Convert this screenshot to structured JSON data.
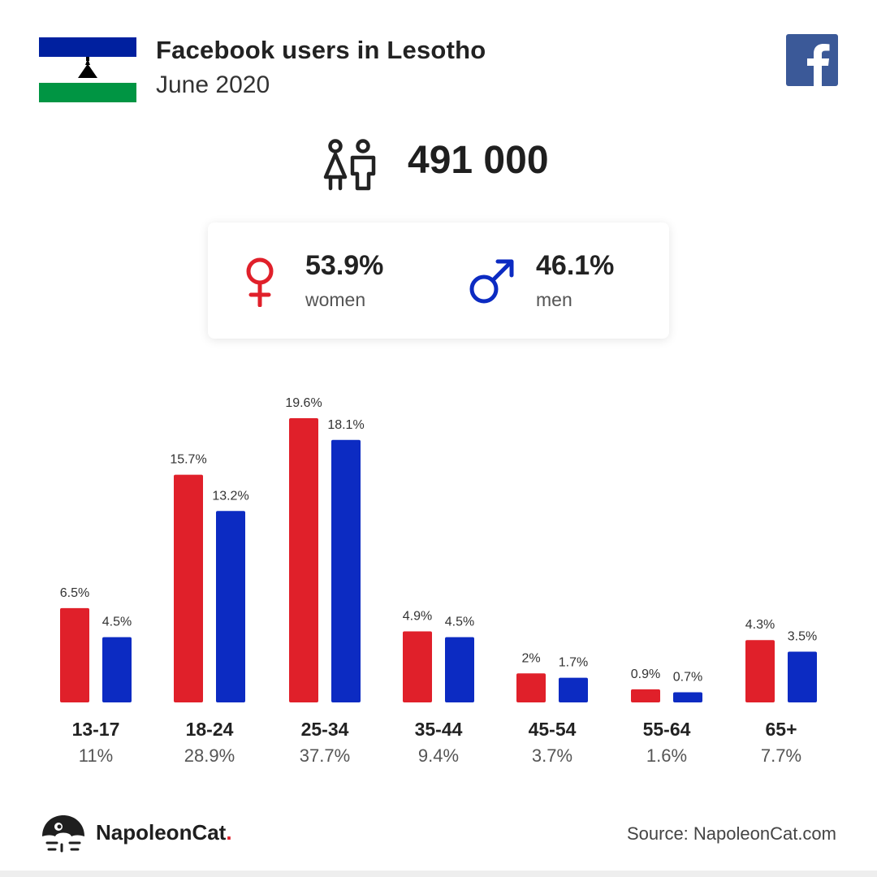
{
  "header": {
    "title": "Facebook users in Lesotho",
    "subtitle": "June 2020"
  },
  "icons": {
    "flag": "lesotho-flag-icon",
    "platform": "facebook-logo-icon",
    "users": "users-icon",
    "female": "female-symbol-icon",
    "male": "male-symbol-icon",
    "brand": "napoleoncat-logo-icon"
  },
  "colors": {
    "women": "#e0202a",
    "men": "#0c2bc2",
    "facebook": "#3b5998",
    "flag_blue": "#00209f",
    "flag_green": "#009543"
  },
  "total_users": "491 000",
  "gender": {
    "women": {
      "pct": "53.9%",
      "label": "women"
    },
    "men": {
      "pct": "46.1%",
      "label": "men"
    }
  },
  "chart_data": {
    "type": "bar",
    "categories": [
      "13-17",
      "18-24",
      "25-34",
      "35-44",
      "45-54",
      "55-64",
      "65+"
    ],
    "category_totals": [
      "11%",
      "28.9%",
      "37.7%",
      "9.4%",
      "3.7%",
      "1.6%",
      "7.7%"
    ],
    "series": [
      {
        "values": [
          6.5,
          15.7,
          19.6,
          4.9,
          2,
          0.9,
          4.3
        ],
        "labels": [
          "6.5%",
          "15.7%",
          "19.6%",
          "4.9%",
          "2%",
          "0.9%",
          "4.3%"
        ]
      },
      {
        "values": [
          4.5,
          13.2,
          18.1,
          4.5,
          1.7,
          0.7,
          3.5
        ],
        "labels": [
          "4.5%",
          "13.2%",
          "18.1%",
          "4.5%",
          "1.7%",
          "0.7%",
          "3.5%"
        ]
      }
    ],
    "ylim": [
      0,
      19.6
    ],
    "grid": false
  },
  "footer": {
    "brand_name": "NapoleonCat",
    "brand_dot": ".",
    "source": "Source: NapoleonCat.com"
  }
}
